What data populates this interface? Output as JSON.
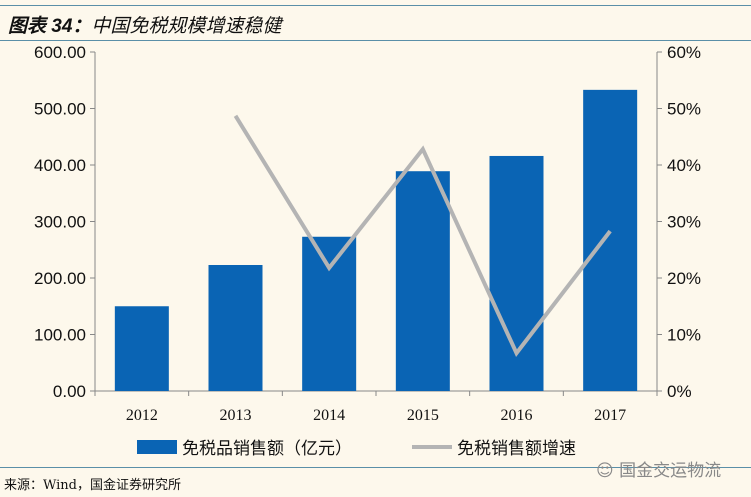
{
  "title": {
    "label": "图表 34：",
    "text": "中国免税规模增速稳健"
  },
  "source": "来源：Wind，国金证券研究所",
  "watermark": "国金交运物流",
  "chart_data": {
    "type": "bar+line",
    "categories": [
      "2012",
      "2013",
      "2014",
      "2015",
      "2016",
      "2017"
    ],
    "series": [
      {
        "name": "免税品销售额（亿元）",
        "type": "bar",
        "axis": "left",
        "color": "#0a64b4",
        "values": [
          150,
          223,
          273,
          389,
          416,
          533
        ]
      },
      {
        "name": "免税销售额增速",
        "type": "line",
        "axis": "right",
        "color": "#b4b4b4",
        "values": [
          null,
          48.7,
          21.8,
          42.8,
          6.7,
          28.3
        ]
      }
    ],
    "y_left": {
      "range": [
        0,
        600
      ],
      "ticks": [
        "0.00",
        "100.00",
        "200.00",
        "300.00",
        "400.00",
        "500.00",
        "600.00"
      ]
    },
    "y_right": {
      "range": [
        0,
        60
      ],
      "ticks": [
        "0%",
        "10%",
        "20%",
        "30%",
        "40%",
        "50%",
        "60%"
      ]
    },
    "grid": false,
    "legend": "bottom"
  }
}
